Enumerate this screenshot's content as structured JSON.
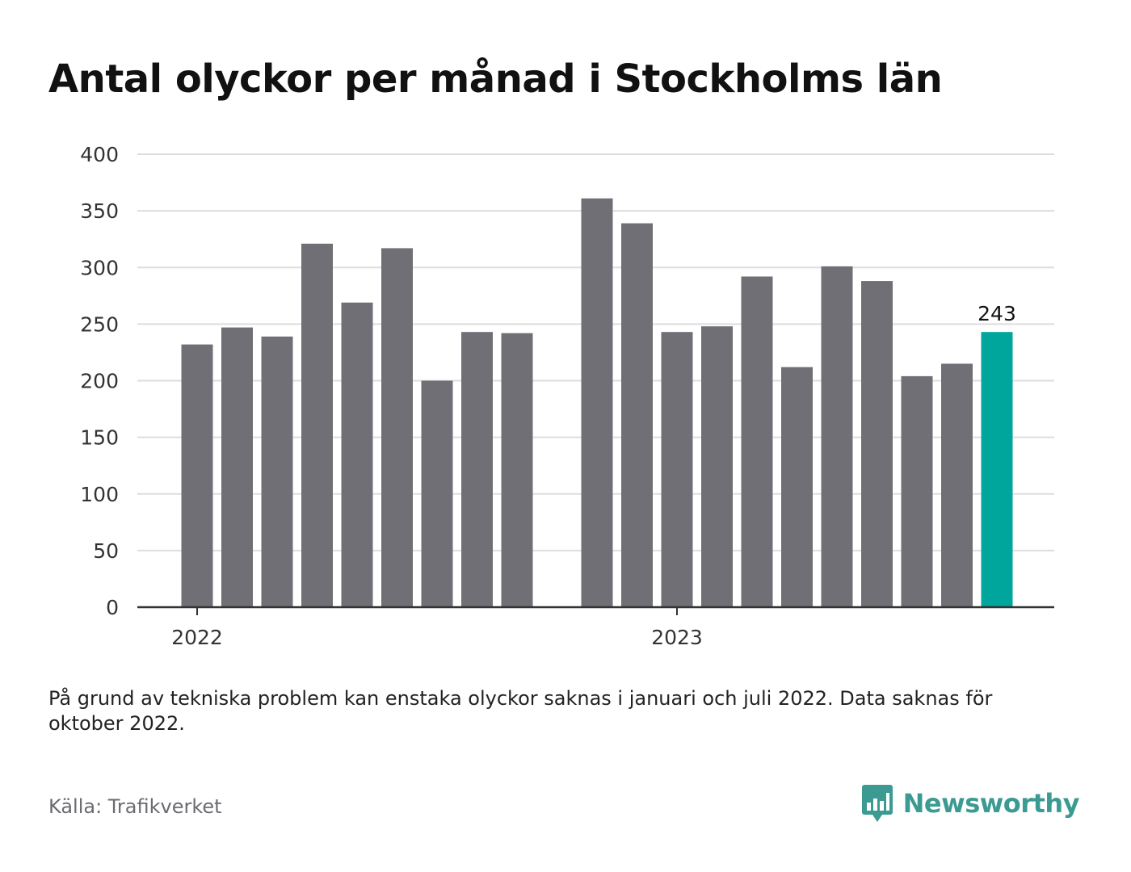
{
  "title": "Antal olyckor per månad i Stockholms län",
  "note": "På grund av tekniska problem kan enstaka olyckor saknas i januari och juli 2022. Data saknas för oktober 2022.",
  "source": "Källa: Trafikverket",
  "brand": {
    "name": "Newsworthy",
    "icon": "newsworthy-logo-icon"
  },
  "colors": {
    "bar": "#706f75",
    "highlight": "#00a59b",
    "grid": "#dddddd",
    "axis": "#333333",
    "brand": "#3b9b93"
  },
  "chart_data": {
    "type": "bar",
    "title": "Antal olyckor per månad i Stockholms län",
    "xlabel": "",
    "ylabel": "",
    "ylim": [
      0,
      400
    ],
    "yticks": [
      0,
      50,
      100,
      150,
      200,
      250,
      300,
      350,
      400
    ],
    "xtick_labels": [
      {
        "label": "2022",
        "at": "2022-01"
      },
      {
        "label": "2023",
        "at": "2023-01"
      }
    ],
    "grid": true,
    "categories": [
      "2022-01",
      "2022-02",
      "2022-03",
      "2022-04",
      "2022-05",
      "2022-06",
      "2022-07",
      "2022-08",
      "2022-09",
      "2022-10",
      "2022-11",
      "2022-12",
      "2023-01",
      "2023-02",
      "2023-03",
      "2023-04",
      "2023-05",
      "2023-06",
      "2023-07",
      "2023-08",
      "2023-09",
      "2023-10"
    ],
    "values": [
      232,
      247,
      239,
      321,
      269,
      317,
      200,
      243,
      242,
      null,
      361,
      339,
      243,
      248,
      292,
      212,
      301,
      288,
      204,
      215,
      243,
      null
    ],
    "highlight": {
      "category": "2023-09",
      "value": 243,
      "label": "243"
    }
  }
}
